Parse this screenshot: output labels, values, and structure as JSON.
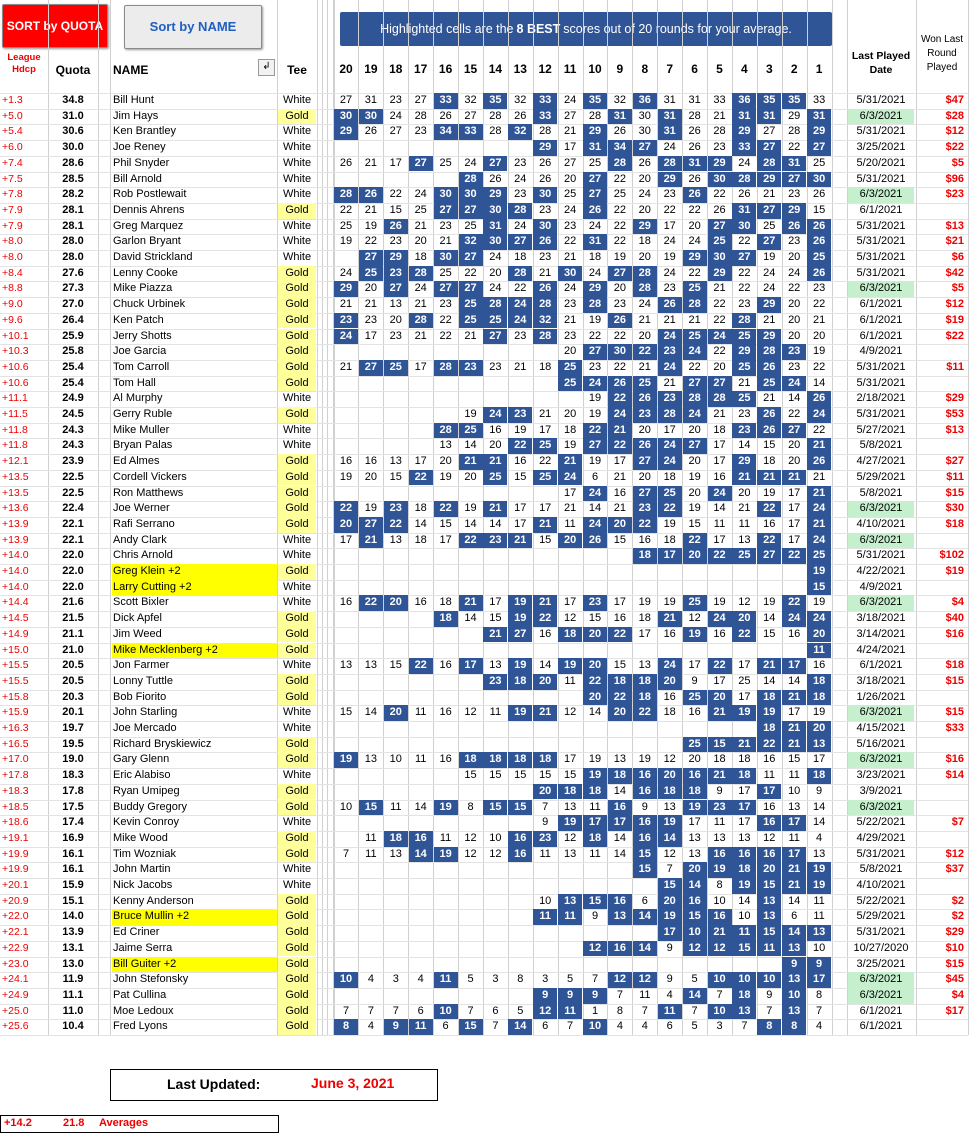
{
  "buttons": {
    "sort_quota": "SORT by QUOTA",
    "sort_name": "Sort by NAME"
  },
  "banner": {
    "pre": "Highlighted cells are the",
    "bold": "8 BEST",
    "post": "scores out of 20 rounds for your average."
  },
  "headers": {
    "hdcp": "League Hdcp",
    "quota": "Quota",
    "name": "NAME",
    "filter": "↲",
    "tee": "Tee",
    "last_played": "Last Played Date",
    "won": "Won Last Round Played"
  },
  "rounds": [
    "20",
    "19",
    "18",
    "17",
    "16",
    "15",
    "14",
    "13",
    "12",
    "11",
    "10",
    "9",
    "8",
    "7",
    "6",
    "5",
    "4",
    "3",
    "2",
    "1"
  ],
  "colors": {
    "best": "#2f5597",
    "gold_tee": "#ffff99",
    "highlight_name": "#ffff00",
    "recent_date": "#c6efce",
    "red": "#ff0000"
  },
  "players": [
    {
      "hd": "+1.3",
      "q": "34.8",
      "n": "Bill Hunt",
      "t": "White",
      "s": "27 31 23 27 *33 32 *35 32 *33 24 *35 32 *36 31 31 33 *36 *35 *35 33",
      "d": "5/31/2021",
      "w": "$47"
    },
    {
      "hd": "+5.0",
      "q": "31.0",
      "n": "Jim Hays",
      "t": "Gold",
      "s": "*30 *30 24 28 26 27 28 26 *33 27 28 *31 30 *31 28 21 *31 *31 29 *31",
      "d": "6/3/2021",
      "dw": 1,
      "w": "$28"
    },
    {
      "hd": "+5.4",
      "q": "30.6",
      "n": "Ken Brantley",
      "t": "White",
      "s": "*29 26 27 23 *34 *33 28 *32 28 21 *29 26 30 *31 26 28 *29 27 28 *29",
      "d": "5/31/2021",
      "w": "$12"
    },
    {
      "hd": "+6.0",
      "q": "30.0",
      "n": "Joe Reney",
      "t": "White",
      "s": "- - - - - - - - *29 17 *31 *34 *27 24 26 23 *33 *27 22 *27",
      "d": "3/25/2021",
      "w": "$22"
    },
    {
      "hd": "+7.4",
      "q": "28.6",
      "n": "Phil Snyder",
      "t": "White",
      "s": "26 21 17 *27 25 24 *27 23 26 27 25 *28 26 *28 *31 *29 24 *28 *31 25",
      "d": "5/20/2021",
      "w": "$5"
    },
    {
      "hd": "+7.5",
      "q": "28.5",
      "n": "Bill Arnold",
      "t": "White",
      "s": "- - - - - *28 26 24 26 20 *27 22 20 *29 26 *30 *28 *29 *27 *30",
      "d": "5/31/2021",
      "w": "$96"
    },
    {
      "hd": "+7.8",
      "q": "28.2",
      "n": "Rob Postlewait",
      "t": "White",
      "s": "*28 *26 22 24 *30 *30 *29 23 *30 25 *27 25 24 23 *26 22 26 21 23 26",
      "d": "6/3/2021",
      "dw": 1,
      "w": "$23"
    },
    {
      "hd": "+7.9",
      "q": "28.1",
      "n": "Dennis Ahrens",
      "t": "Gold",
      "s": "22 21 15 25 *27 *27 *30 *28 23 24 *26 22 20 22 22 26 *31 *27 *29 15",
      "d": "6/1/2021",
      "w": ""
    },
    {
      "hd": "+7.9",
      "q": "28.1",
      "n": "Greg Marquez",
      "t": "White",
      "s": "25 19 *26 21 23 25 *31 24 *30 23 24 22 *29 17 20 *27 *30 25 *26 *26",
      "d": "5/31/2021",
      "w": "$13"
    },
    {
      "hd": "+8.0",
      "q": "28.0",
      "n": "Garlon Bryant",
      "t": "White",
      "s": "19 22 23 20 21 *32 *30 *27 *26 22 *31 22 18 24 24 *25 22 *27 23 *26",
      "d": "5/31/2021",
      "w": "$21"
    },
    {
      "hd": "+8.0",
      "q": "28.0",
      "n": "David Strickland",
      "t": "White",
      "s": "- *27 *29 18 *30 *27 24 18 23 21 18 19 20 19 *29 *30 *27 19 20 *25",
      "d": "5/31/2021",
      "w": "$6"
    },
    {
      "hd": "+8.4",
      "q": "27.6",
      "n": "Lenny Cooke",
      "t": "Gold",
      "s": "24 *25 *23 *28 25 22 20 *28 21 *30 24 *27 *28 24 22 *29 22 24 24 *26",
      "d": "5/31/2021",
      "w": "$42"
    },
    {
      "hd": "+8.8",
      "q": "27.3",
      "n": "Mike Piazza",
      "t": "Gold",
      "s": "*29 20 *27 24 *27 *27 24 22 *26 24 *29 20 *28 23 *25 21 22 24 22 23",
      "d": "6/3/2021",
      "dw": 1,
      "w": "$5"
    },
    {
      "hd": "+9.0",
      "q": "27.0",
      "n": "Chuck Urbinek",
      "t": "Gold",
      "s": "21 21 13 21 23 *25 *28 *24 *28 23 *28 23 24 *26 *28 22 23 *29 20 22",
      "d": "6/1/2021",
      "w": "$12"
    },
    {
      "hd": "+9.6",
      "q": "26.4",
      "n": "Ken Patch",
      "t": "Gold",
      "s": "*23 23 20 *28 22 *25 *25 *24 *32 21 19 *26 21 21 21 22 *28 21 20 21",
      "d": "6/1/2021",
      "w": "$19"
    },
    {
      "hd": "+10.1",
      "q": "25.9",
      "n": "Jerry Shotts",
      "t": "Gold",
      "s": "*24 17 23 21 22 21 *27 23 *28 23 22 22 20 *24 *25 *24 *25 *29 20 20",
      "d": "6/1/2021",
      "w": "$22"
    },
    {
      "hd": "+10.3",
      "q": "25.8",
      "n": "Joe Garcia",
      "t": "Gold",
      "s": "- - - - - - - - - 20 *27 *30 *22 *23 *24 22 *29 *28 *23 19",
      "d": "4/9/2021",
      "w": ""
    },
    {
      "hd": "+10.6",
      "q": "25.4",
      "n": "Tom Carroll",
      "t": "Gold",
      "s": "21 *27 *25 17 *28 *23 23 21 18 *25 23 22 21 *24 22 20 *25 *26 23 22",
      "d": "5/31/2021",
      "w": "$11"
    },
    {
      "hd": "+10.6",
      "q": "25.4",
      "n": "Tom Hall",
      "t": "Gold",
      "s": "- - - - - - - - - *25 *24 *26 *25 21 *27 *27 21 *25 *24 14",
      "d": "5/31/2021",
      "w": ""
    },
    {
      "hd": "+11.1",
      "q": "24.9",
      "n": "Al Murphy",
      "t": "White",
      "s": "- - - - - - - - - - 19 *22 *26 *23 *28 *28 *25 21 14 *26",
      "d": "2/18/2021",
      "w": "$29"
    },
    {
      "hd": "+11.5",
      "q": "24.5",
      "n": "Gerry Ruble",
      "t": "Gold",
      "s": "- - - - - 19 *24 *23 21 20 19 *24 *23 *28 *24 21 23 *26 22 *24",
      "d": "5/31/2021",
      "w": "$53"
    },
    {
      "hd": "+11.8",
      "q": "24.3",
      "n": "Mike Muller",
      "t": "White",
      "s": "- - - - *28 *25 16 19 17 18 *22 *21 20 17 20 18 *23 *26 *27 22",
      "d": "5/27/2021",
      "w": "$13"
    },
    {
      "hd": "+11.8",
      "q": "24.3",
      "n": "Bryan Palas",
      "t": "White",
      "s": "- - - - 13 14 20 *22 *25 19 *27 *22 *26 *24 *27 17 14 15 20 *21",
      "d": "5/8/2021",
      "w": ""
    },
    {
      "hd": "+12.1",
      "q": "23.9",
      "n": "Ed Almes",
      "t": "Gold",
      "s": "16 16 13 17 20 *21 *21 16 22 *21 19 17 *27 *24 20 17 *29 18 20 *26",
      "d": "4/27/2021",
      "w": "$27"
    },
    {
      "hd": "+13.5",
      "q": "22.5",
      "n": "Cordell Vickers",
      "t": "Gold",
      "s": "19 20 15 *22 19 20 *25 15 *25 *24 6 21 20 18 19 16 *21 *21 *21 21",
      "d": "5/29/2021",
      "w": "$11"
    },
    {
      "hd": "+13.5",
      "q": "22.5",
      "n": "Ron Matthews",
      "t": "Gold",
      "s": "- - - - - - - - - 17 *24 16 *27 *25 20 *24 20 19 17 *21",
      "d": "5/8/2021",
      "w": "$15"
    },
    {
      "hd": "+13.6",
      "q": "22.4",
      "n": "Joe Werner",
      "t": "Gold",
      "s": "*22 19 *23 18 *22 19 *21 17 17 21 14 21 *23 *22 19 14 21 *22 17 *24",
      "d": "6/3/2021",
      "dw": 1,
      "w": "$30"
    },
    {
      "hd": "+13.9",
      "q": "22.1",
      "n": "Rafi Serrano",
      "t": "Gold",
      "s": "*20 *27 *22 14 15 14 14 17 *21 11 *24 *20 *22 19 15 11 11 16 17 *21",
      "d": "4/10/2021",
      "w": "$18"
    },
    {
      "hd": "+13.9",
      "q": "22.1",
      "n": "Andy Clark",
      "t": "White",
      "s": "17 *21 13 18 17 *22 *23 *21 15 *20 *26 15 16 18 *22 17 13 *22 17 *24",
      "d": "6/3/2021",
      "dw": 1,
      "w": ""
    },
    {
      "hd": "+14.0",
      "q": "22.0",
      "n": "Chris Arnold",
      "t": "White",
      "s": "- - - - - - - - - - - - *18 *17 *20 *22 *25 *27 *22 *25",
      "d": "5/31/2021",
      "w": "$102"
    },
    {
      "hd": "+14.0",
      "q": "22.0",
      "n": "Greg Klein +2",
      "hl": 1,
      "t": "Gold",
      "s": "- - - - - - - - - - - - - - - - - - - *19",
      "d": "4/22/2021",
      "w": "$19"
    },
    {
      "hd": "+14.0",
      "q": "22.0",
      "n": "Larry Cutting +2",
      "hl": 1,
      "t": "White",
      "s": "- - - - - - - - - - - - - - - - - - - *15",
      "d": "4/9/2021",
      "w": ""
    },
    {
      "hd": "+14.4",
      "q": "21.6",
      "n": "Scott Bixler",
      "t": "White",
      "s": "16 *22 *20 16 18 *21 17 *19 *21 17 *23 17 19 19 *25 19 12 19 *22 19",
      "d": "6/3/2021",
      "dw": 1,
      "w": "$4"
    },
    {
      "hd": "+14.5",
      "q": "21.5",
      "n": "Dick Apfel",
      "t": "Gold",
      "s": "- - - - *18 14 15 *19 *22 12 15 16 18 *21 12 *24 *20 14 *24 *24",
      "d": "3/18/2021",
      "w": "$40"
    },
    {
      "hd": "+14.9",
      "q": "21.1",
      "n": "Jim Weed",
      "t": "Gold",
      "s": "- - - - - - *21 *27 16 *18 *20 *22 17 16 *19 16 *22 15 16 *20",
      "d": "3/14/2021",
      "w": "$16"
    },
    {
      "hd": "+15.0",
      "q": "21.0",
      "n": "Mike Mecklenberg +2",
      "hl": 1,
      "t": "Gold",
      "s": "- - - - - - - - - - - - - - - - - - - *11",
      "d": "4/24/2021",
      "w": ""
    },
    {
      "hd": "+15.5",
      "q": "20.5",
      "n": "Jon Farmer",
      "t": "White",
      "s": "13 13 15 *22 16 *17 13 *19 14 *19 *20 15 13 *24 17 *22 17 *21 *17 16",
      "d": "6/1/2021",
      "w": "$18"
    },
    {
      "hd": "+15.5",
      "q": "20.5",
      "n": "Lonny Tuttle",
      "t": "Gold",
      "s": "- - - - - - *23 *18 *20 11 *22 *18 *18 *20 9 17 25 14 14 *18",
      "d": "3/18/2021",
      "w": "$15"
    },
    {
      "hd": "+15.8",
      "q": "20.3",
      "n": "Bob Fiorito",
      "t": "Gold",
      "s": "- - - - - - - - - - *20 *22 *18 16 *25 *20 17 *18 *21 *18",
      "d": "1/26/2021",
      "w": ""
    },
    {
      "hd": "+15.9",
      "q": "20.1",
      "n": "John Starling",
      "t": "White",
      "s": "15 14 *20 11 16 12 11 *19 *21 12 14 *20 *22 18 16 *21 *19 *19 17 19",
      "d": "6/3/2021",
      "dw": 1,
      "w": "$15"
    },
    {
      "hd": "+16.3",
      "q": "19.7",
      "n": "Joe Mercado",
      "t": "White",
      "s": "- - - - - - - - - - - - - - - - - *18 *21 *20",
      "d": "4/15/2021",
      "w": "$33"
    },
    {
      "hd": "+16.5",
      "q": "19.5",
      "n": "Richard Bryskiewicz",
      "t": "Gold",
      "s": "- - - - - - - - - - - - - - *25 *15 *21 *22 *21 *13",
      "d": "5/16/2021",
      "w": ""
    },
    {
      "hd": "+17.0",
      "q": "19.0",
      "n": "Gary Glenn",
      "t": "Gold",
      "s": "*19 13 10 11 16 *18 *18 *18 *18 17 19 13 19 12 20 18 18 16 15 17",
      "d": "6/3/2021",
      "dw": 1,
      "w": "$16"
    },
    {
      "hd": "+17.8",
      "q": "18.3",
      "n": "Eric Alabiso",
      "t": "White",
      "s": "- - - - - 15 15 15 15 15 *19 *18 *16 *20 *16 *21 *18 11 11 *18",
      "d": "3/23/2021",
      "w": "$14"
    },
    {
      "hd": "+18.3",
      "q": "17.8",
      "n": "Ryan Umipeg",
      "t": "Gold",
      "s": "- - - - - - - - *20 *18 *18 14 *16 *18 *18 9 17 *17 10 9",
      "d": "3/9/2021",
      "w": ""
    },
    {
      "hd": "+18.5",
      "q": "17.5",
      "n": "Buddy Gregory",
      "t": "Gold",
      "s": "10 *15 11 14 *19 8 *15 *15 7 13 11 *16 9 13 *19 *23 *17 16 13 14",
      "d": "6/3/2021",
      "dw": 1,
      "w": ""
    },
    {
      "hd": "+18.6",
      "q": "17.4",
      "n": "Kevin Conroy",
      "t": "White",
      "s": "- - - - - - - - 9 *19 *17 *17 *16 *19 17 11 17 *16 *17 14",
      "d": "5/22/2021",
      "w": "$7"
    },
    {
      "hd": "+19.1",
      "q": "16.9",
      "n": "Mike Wood",
      "t": "Gold",
      "s": "- 11 *18 *16 11 12 10 *16 *23 12 *18 14 *16 *14 13 13 13 12 11 4",
      "d": "4/29/2021",
      "w": ""
    },
    {
      "hd": "+19.9",
      "q": "16.1",
      "n": "Tim Wozniak",
      "t": "Gold",
      "s": "7 11 13 *14 *19 12 12 *16 11 13 11 14 *15 12 13 *16 *16 *16 *17 13",
      "d": "5/31/2021",
      "w": "$12"
    },
    {
      "hd": "+19.9",
      "q": "16.1",
      "n": "John Martin",
      "t": "White",
      "s": "- - - - - - - - - - - - *15 7 *20 *19 *18 *20 *21 *19",
      "d": "5/8/2021",
      "w": "$37"
    },
    {
      "hd": "+20.1",
      "q": "15.9",
      "n": "Nick Jacobs",
      "t": "White",
      "s": "- - - - - - - - - - - - - *15 *14 8 *19 *15 *21 *19",
      "d": "4/10/2021",
      "w": ""
    },
    {
      "hd": "+20.9",
      "q": "15.1",
      "n": "Kenny Anderson",
      "t": "Gold",
      "s": "- - - - - - - - 10 *13 *15 *16 6 *20 *16 10 14 *13 14 11",
      "d": "5/22/2021",
      "w": "$2"
    },
    {
      "hd": "+22.0",
      "q": "14.0",
      "n": "Bruce Mullin +2",
      "hl": 1,
      "t": "Gold",
      "s": "- - - - - - - - *11 *11 9 *13 *14 *19 *15 *16 10 *13 6 11",
      "d": "5/29/2021",
      "w": "$2"
    },
    {
      "hd": "+22.1",
      "q": "13.9",
      "n": "Ed Criner",
      "t": "Gold",
      "s": "- - - - - - - - - - - - - *17 *10 *21 *11 *15 *14 *13",
      "d": "5/31/2021",
      "w": "$29"
    },
    {
      "hd": "+22.9",
      "q": "13.1",
      "n": "Jaime Serra",
      "t": "Gold",
      "s": "- - - - - - - - - - *12 *16 *14 9 *12 *12 *15 *11 *13 10",
      "d": "10/27/2020",
      "w": "$10"
    },
    {
      "hd": "+23.0",
      "q": "13.0",
      "n": "Bill Guiter +2",
      "hl": 1,
      "t": "Gold",
      "s": "- - - - - - - - - - - - - - - - - - *9 *9",
      "d": "3/25/2021",
      "w": "$15"
    },
    {
      "hd": "+24.1",
      "q": "11.9",
      "n": "John Stefonsky",
      "t": "Gold",
      "s": "*10 4 3 4 *11 5 3 8 3 5 7 *12 *12 9 5 *10 *10 *10 *13 *17",
      "d": "6/3/2021",
      "dw": 1,
      "w": "$45"
    },
    {
      "hd": "+24.9",
      "q": "11.1",
      "n": "Pat Cullina",
      "t": "Gold",
      "s": "- - - - - - - - *9 *9 *9 7 11 4 *14 7 *18 9 *10 8",
      "d": "6/3/2021",
      "dw": 1,
      "w": "$4"
    },
    {
      "hd": "+25.0",
      "q": "11.0",
      "n": "Moe Ledoux",
      "t": "Gold",
      "s": "7 7 7 6 *10 7 6 5 *12 *11 1 8 7 *11 7 *10 *13 7 *13 7",
      "d": "6/1/2021",
      "w": "$17"
    },
    {
      "hd": "+25.6",
      "q": "10.4",
      "n": "Fred Lyons",
      "t": "Gold",
      "s": "*8 4 *9 *11 6 *15 7 *14 6 7 *10 4 4 6 5 3 7 *8 *8 4",
      "d": "6/1/2021",
      "w": ""
    }
  ],
  "footer": {
    "last_updated_label": "Last Updated:",
    "last_updated_value": "June 3, 2021",
    "avg_hdcp": "+14.2",
    "avg_quota": "21.8",
    "avg_label": "Averages"
  }
}
